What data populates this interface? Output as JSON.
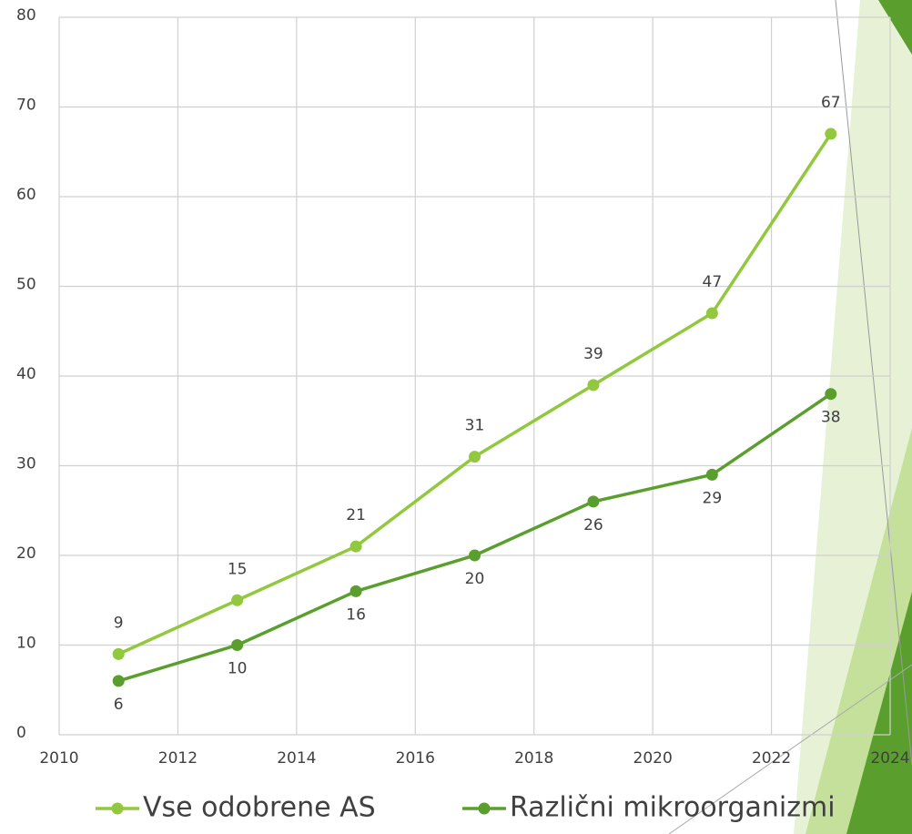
{
  "chart_data": {
    "type": "line",
    "x": [
      2011,
      2013,
      2015,
      2017,
      2019,
      2021,
      2023
    ],
    "series": [
      {
        "name": "Vse odobrene AS",
        "color": "#92c83e",
        "values": [
          9,
          15,
          21,
          31,
          39,
          47,
          67
        ]
      },
      {
        "name": "Različni mikroorganizmi",
        "color": "#5a9f2e",
        "values": [
          6,
          10,
          16,
          20,
          26,
          29,
          38
        ]
      }
    ],
    "xlim": [
      2010,
      2024
    ],
    "xticks": [
      2010,
      2012,
      2014,
      2016,
      2018,
      2020,
      2022,
      2024
    ],
    "ylim": [
      0,
      80
    ],
    "yticks": [
      0,
      10,
      20,
      30,
      40,
      50,
      60,
      70,
      80
    ],
    "grid": true,
    "legend": "bottom"
  }
}
